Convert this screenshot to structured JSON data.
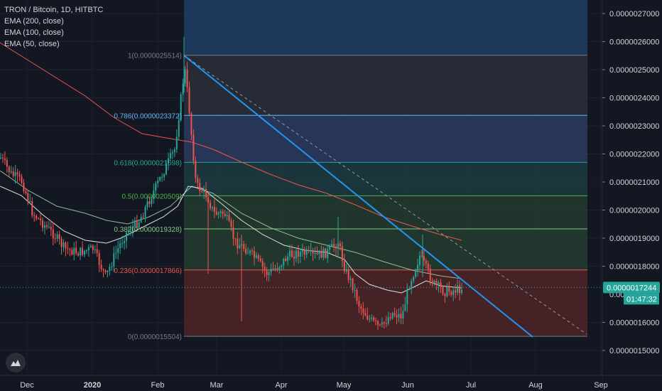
{
  "legend": {
    "symbol": "TRON / Bitcoin, 1D, HITBTC",
    "ema200": "EMA (200, close)",
    "ema100": "EMA (100, close)",
    "ema50": "EMA (50, close)"
  },
  "colors": {
    "background": "#131722",
    "up": "#26a69a",
    "down": "#ef5350",
    "ema200": "#ef5350",
    "ema100": "#a5d6a7",
    "ema50": "#e0e0e0",
    "trendline": "#2196f3",
    "price_tag": "#26a69a",
    "countdown_tag": "#26a69a"
  },
  "logo_icon": "tradingview-logo-icon",
  "chart_data": {
    "type": "candlestick",
    "title": "TRON / Bitcoin, 1D, HITBTC",
    "x_axis": {
      "tick_labels": [
        "Dec",
        "2020",
        "Feb",
        "Mar",
        "Apr",
        "May",
        "Jun",
        "Jul",
        "Aug",
        "Sep"
      ]
    },
    "y_axis": {
      "ylim": [
        1.47e-06,
        2.735e-06
      ],
      "tick_labels": [
        "0.0000027000",
        "0.0000026000",
        "0.0000025000",
        "0.0000024000",
        "0.0000023000",
        "0.0000022000",
        "0.0000021000",
        "0.0000020000",
        "0.0000019000",
        "0.0000018000",
        "0.0000016000",
        "0.0000015000"
      ],
      "tick_values": [
        2.7e-06,
        2.6e-06,
        2.5e-06,
        2.4e-06,
        2.3e-06,
        2.2e-06,
        2.1e-06,
        2e-06,
        1.9e-06,
        1.8e-06,
        1.6e-06,
        1.5e-06
      ]
    },
    "fibonacci": {
      "levels": [
        {
          "label": "1(0.0000025514)",
          "value": 2.5514e-06,
          "color": "#787b86",
          "fill": "#2a2e39"
        },
        {
          "label": "0.786(0.0000023372)",
          "value": 2.3372e-06,
          "color": "#64b5f6",
          "fill": "#2a3a5c"
        },
        {
          "label": "0.618(0.0000021698)",
          "value": 2.1698e-06,
          "color": "#26a69a",
          "fill": "#1c3a3f"
        },
        {
          "label": "0.5(0.0000020509)",
          "value": 2.0509e-06,
          "color": "#4caf50",
          "fill": "#22382c"
        },
        {
          "label": "0.382(0.0000019328)",
          "value": 1.9328e-06,
          "color": "#81c784",
          "fill": "#243a2f"
        },
        {
          "label": "0.236(0.0000017866)",
          "value": 1.7866e-06,
          "color": "#ef5350",
          "fill": "#4a2427"
        },
        {
          "label": "0(0.0000015504)",
          "value": 1.5504e-06,
          "color": "#787b86",
          "fill": "#3f2225"
        }
      ],
      "top_zone_fill": "#1f3a5f"
    },
    "current_price": {
      "label": "0.0000017244",
      "value": 1.7244e-06
    },
    "countdown": {
      "label": "01:47:32"
    },
    "partial_tick_label": "0.0000017"
  }
}
